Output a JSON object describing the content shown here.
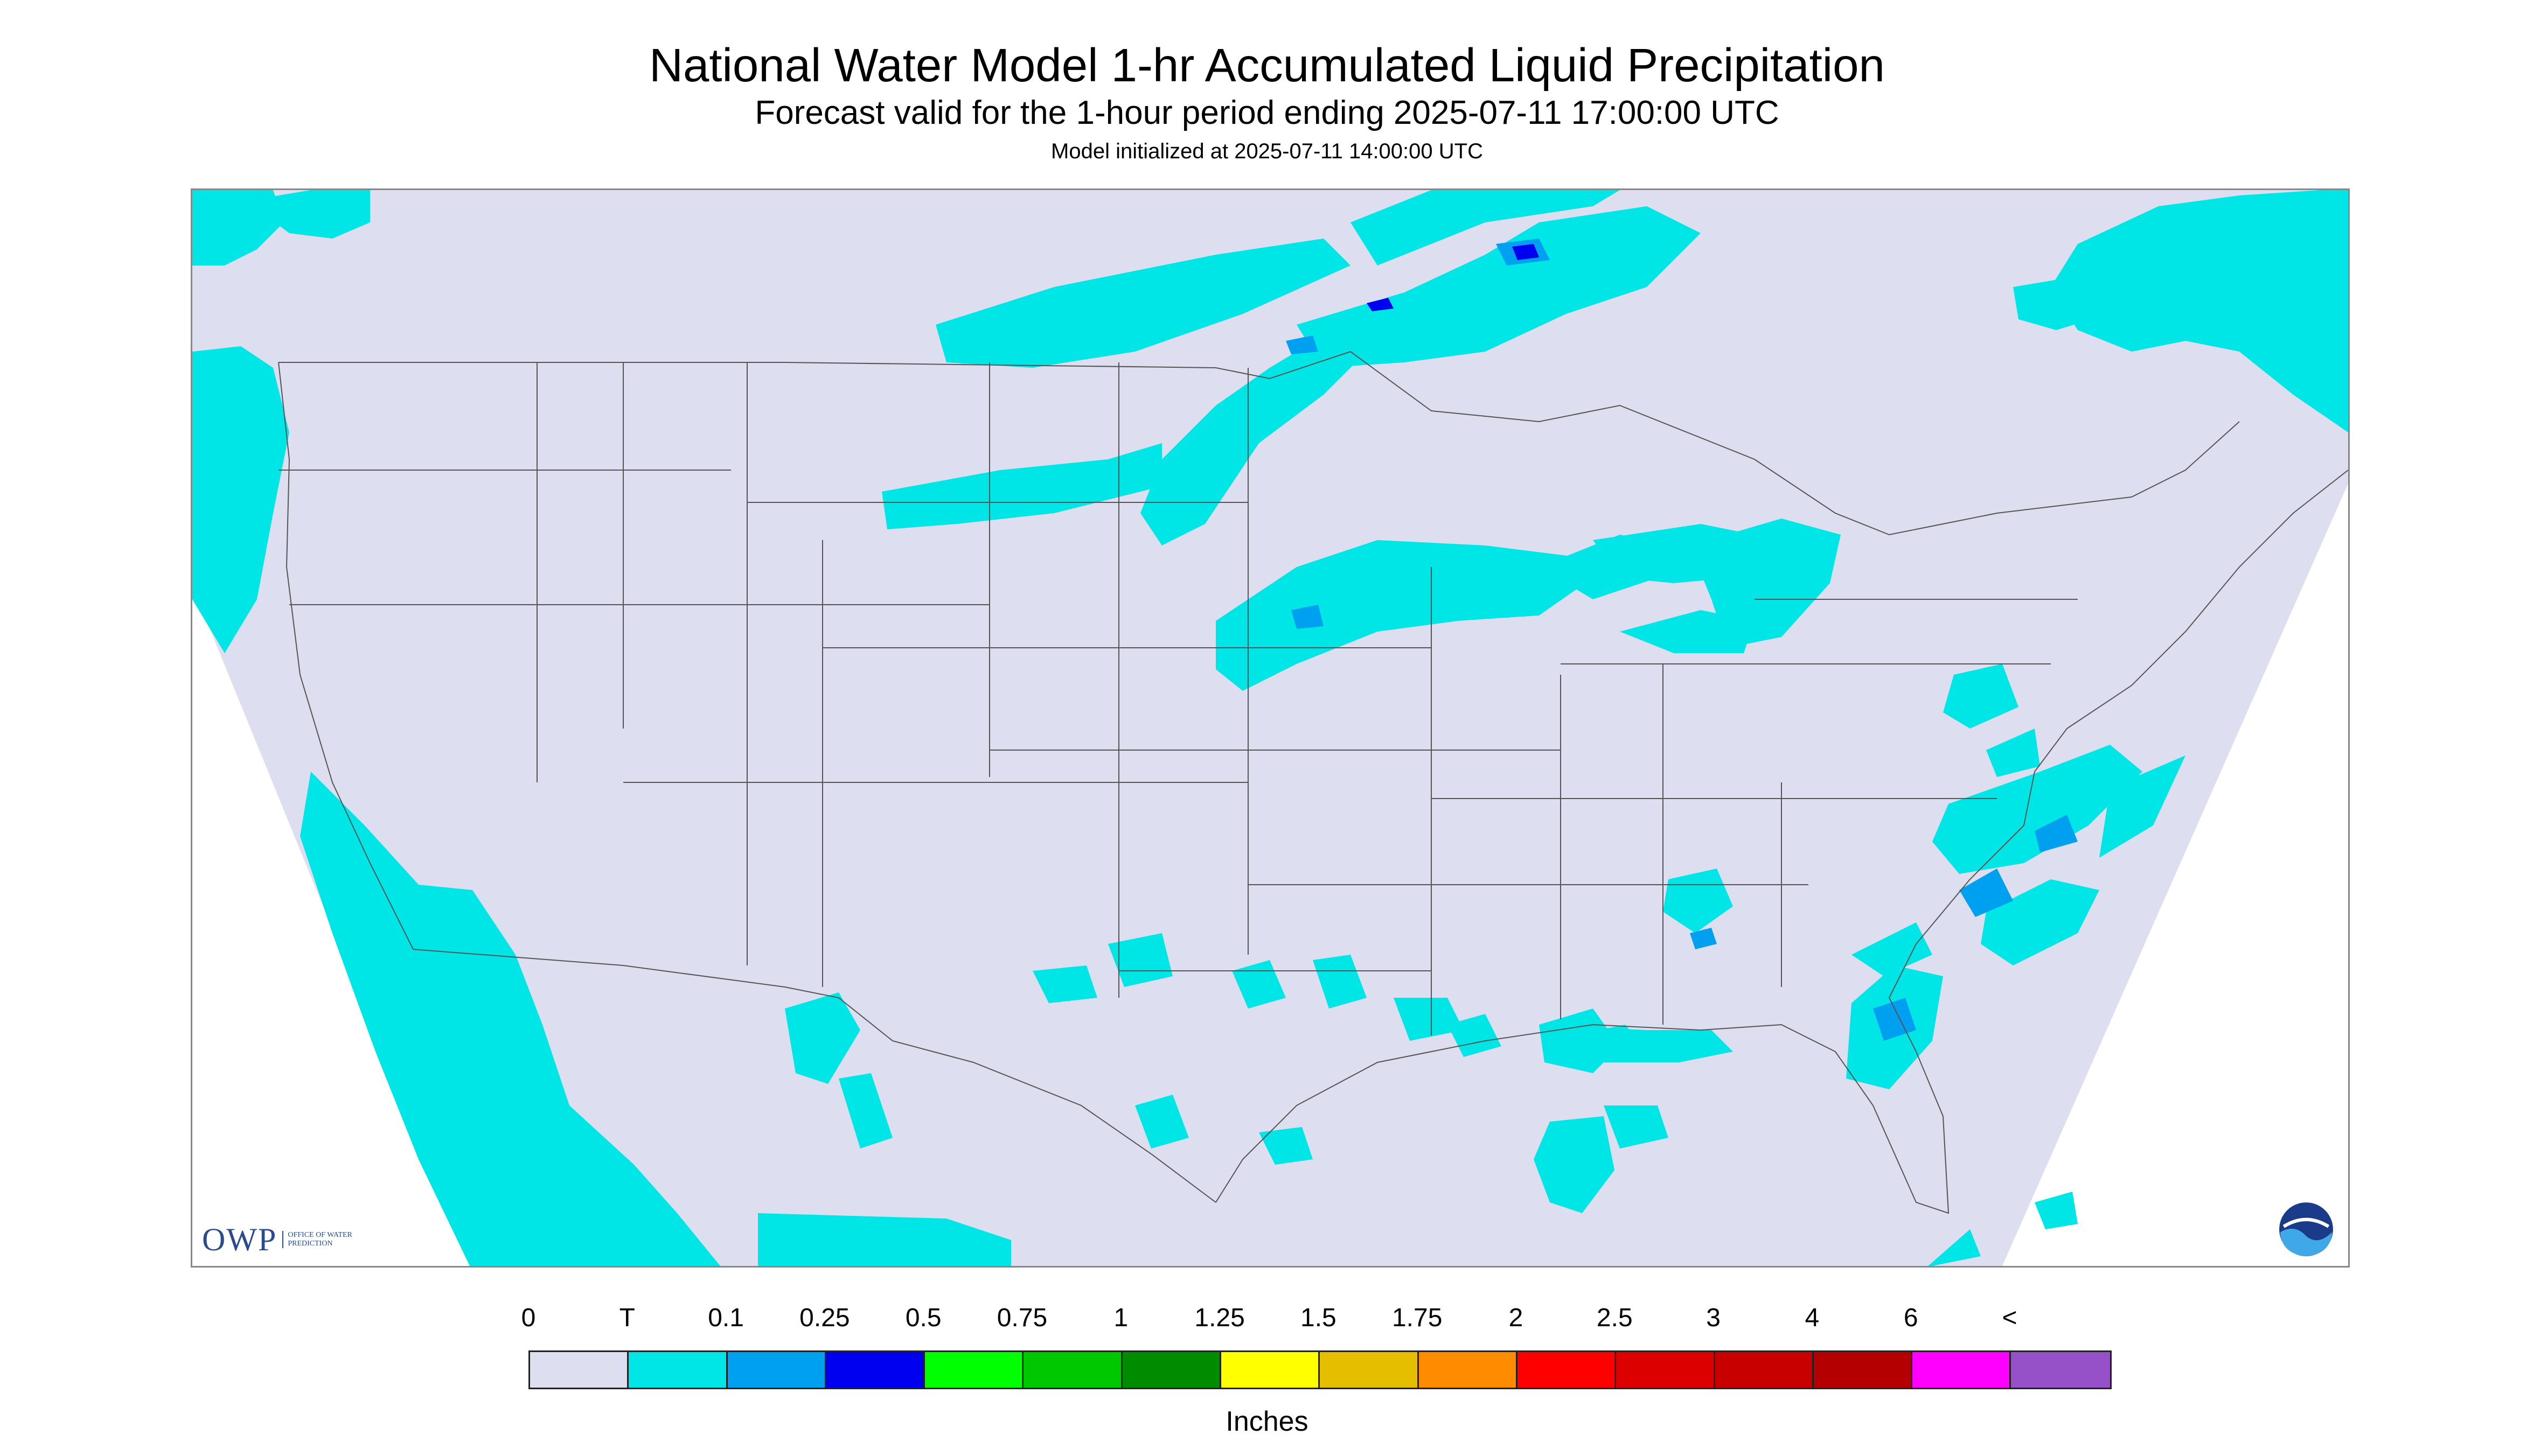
{
  "header": {
    "title": "National Water Model 1-hr Accumulated Liquid Precipitation",
    "subtitle": "Forecast valid for the 1-hour period ending 2025-07-11 17:00:00 UTC",
    "init_text": "Model initialized at 2025-07-11 14:00:00 UTC"
  },
  "map": {
    "background_color": "#dddeef",
    "outside_color": "#ffffff",
    "land_color": "#dddeef",
    "precip_light_color": "#00e5e5",
    "precip_medium_color": "#00a0f0",
    "precip_heavy_color": "#0000f0",
    "boundary_color": "#555555"
  },
  "logos": {
    "owp_text": "OWP",
    "owp_subtext": "OFFICE OF WATER PREDICTION",
    "noaa_icon": "noaa-logo-icon"
  },
  "legend": {
    "labels": [
      "0",
      "T",
      "0.1",
      "0.25",
      "0.5",
      "0.75",
      "1",
      "1.25",
      "1.5",
      "1.75",
      "2",
      "2.5",
      "3",
      "4",
      "6",
      "<"
    ],
    "colors": [
      "#dddeef",
      "#00e5e5",
      "#00a0f0",
      "#0000f0",
      "#00ff00",
      "#00c800",
      "#008c00",
      "#ffff00",
      "#e6be00",
      "#ff8c00",
      "#ff0000",
      "#dc0000",
      "#c80000",
      "#b40000",
      "#ff00ff",
      "#9650c8"
    ],
    "units": "Inches"
  }
}
